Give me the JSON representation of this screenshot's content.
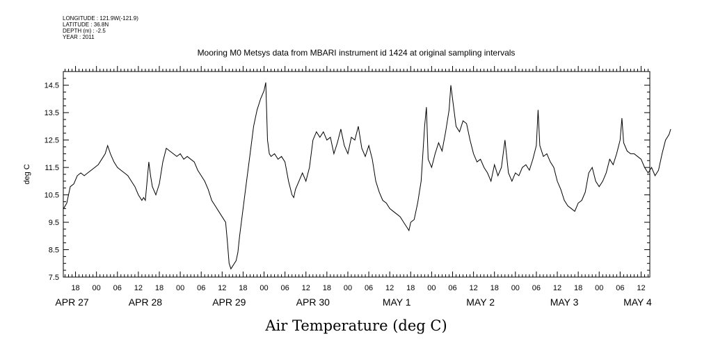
{
  "metadata": {
    "longitude": "LONGITUDE : 121.9W(-121.9)",
    "latitude": "LATITUDE : 36.8N",
    "depth": "DEPTH (m) : -2.5",
    "year": "YEAR : 2011"
  },
  "chart_data": {
    "type": "line",
    "title": "Mooring M0 Metsys data from MBARI instrument id 1424 at original sampling intervals",
    "xlabel": "Air Temperature (deg C)",
    "ylabel": "deg C",
    "ylim": [
      7.5,
      15.0
    ],
    "yticks": [
      7.5,
      8.5,
      9.5,
      10.5,
      11.5,
      12.5,
      13.5,
      14.5
    ],
    "ytick_labels": [
      "7.5",
      "8.5",
      "9.5",
      "10.5",
      "11.5",
      "12.5",
      "13.5",
      "14.5"
    ],
    "x_unit": "hours since APR 27 00",
    "xlim": [
      14.5,
      182.5
    ],
    "xtick_labels": [
      {
        "x": 18,
        "label": "18"
      },
      {
        "x": 24,
        "label": "00"
      },
      {
        "x": 30,
        "label": "06"
      },
      {
        "x": 36,
        "label": "12"
      },
      {
        "x": 42,
        "label": "18"
      },
      {
        "x": 48,
        "label": "00"
      },
      {
        "x": 54,
        "label": "06"
      },
      {
        "x": 60,
        "label": "12"
      },
      {
        "x": 66,
        "label": "18"
      },
      {
        "x": 72,
        "label": "00"
      },
      {
        "x": 78,
        "label": "06"
      },
      {
        "x": 84,
        "label": "12"
      },
      {
        "x": 90,
        "label": "18"
      },
      {
        "x": 96,
        "label": "00"
      },
      {
        "x": 102,
        "label": "06"
      },
      {
        "x": 108,
        "label": "12"
      },
      {
        "x": 114,
        "label": "18"
      },
      {
        "x": 120,
        "label": "00"
      },
      {
        "x": 126,
        "label": "06"
      },
      {
        "x": 132,
        "label": "12"
      },
      {
        "x": 138,
        "label": "18"
      },
      {
        "x": 144,
        "label": "00"
      },
      {
        "x": 150,
        "label": "06"
      },
      {
        "x": 156,
        "label": "12"
      },
      {
        "x": 162,
        "label": "18"
      },
      {
        "x": 168,
        "label": "00"
      },
      {
        "x": 174,
        "label": "06"
      },
      {
        "x": 180,
        "label": "12"
      }
    ],
    "day_labels": [
      {
        "x": 17,
        "label": "APR 27"
      },
      {
        "x": 38,
        "label": "APR 28"
      },
      {
        "x": 62,
        "label": "APR 29"
      },
      {
        "x": 86,
        "label": "APR 30"
      },
      {
        "x": 110,
        "label": "MAY  1"
      },
      {
        "x": 134,
        "label": "MAY  2"
      },
      {
        "x": 158,
        "label": "MAY  3"
      },
      {
        "x": 179,
        "label": "MAY  4"
      }
    ],
    "grid": false,
    "series": [
      {
        "points": [
          [
            14.6,
            10.0
          ],
          [
            15.5,
            10.2
          ],
          [
            16.5,
            10.8
          ],
          [
            17.5,
            10.9
          ],
          [
            18.5,
            11.2
          ],
          [
            19.5,
            11.3
          ],
          [
            20.5,
            11.2
          ],
          [
            21.5,
            11.3
          ],
          [
            22.5,
            11.4
          ],
          [
            23.5,
            11.5
          ],
          [
            24.5,
            11.6
          ],
          [
            25.5,
            11.8
          ],
          [
            26.5,
            12.0
          ],
          [
            27.2,
            12.3
          ],
          [
            28,
            12.0
          ],
          [
            29,
            11.7
          ],
          [
            30,
            11.5
          ],
          [
            31,
            11.4
          ],
          [
            32,
            11.3
          ],
          [
            33,
            11.2
          ],
          [
            34,
            11.0
          ],
          [
            35,
            10.8
          ],
          [
            36,
            10.5
          ],
          [
            37,
            10.3
          ],
          [
            37.5,
            10.4
          ],
          [
            38,
            10.3
          ],
          [
            38.5,
            11.0
          ],
          [
            39,
            11.7
          ],
          [
            39.5,
            11.2
          ],
          [
            40,
            10.8
          ],
          [
            41,
            10.5
          ],
          [
            42,
            10.9
          ],
          [
            43,
            11.7
          ],
          [
            44,
            12.2
          ],
          [
            45,
            12.1
          ],
          [
            46,
            12.0
          ],
          [
            47,
            11.9
          ],
          [
            48,
            12.0
          ],
          [
            49,
            11.8
          ],
          [
            50,
            11.9
          ],
          [
            51,
            11.8
          ],
          [
            52,
            11.7
          ],
          [
            53,
            11.4
          ],
          [
            54,
            11.2
          ],
          [
            55,
            11.0
          ],
          [
            56,
            10.7
          ],
          [
            57,
            10.3
          ],
          [
            58,
            10.1
          ],
          [
            59,
            9.9
          ],
          [
            60,
            9.7
          ],
          [
            61,
            9.5
          ],
          [
            61.5,
            8.8
          ],
          [
            62,
            8.0
          ],
          [
            62.5,
            7.8
          ],
          [
            63,
            7.9
          ],
          [
            64,
            8.1
          ],
          [
            64.5,
            8.4
          ],
          [
            65,
            9.0
          ],
          [
            66,
            10.0
          ],
          [
            67,
            11.0
          ],
          [
            68,
            12.0
          ],
          [
            69,
            13.0
          ],
          [
            70,
            13.6
          ],
          [
            71,
            14.0
          ],
          [
            72,
            14.3
          ],
          [
            72.5,
            14.6
          ],
          [
            73,
            12.5
          ],
          [
            73.5,
            12.0
          ],
          [
            74,
            11.9
          ],
          [
            75,
            12.0
          ],
          [
            76,
            11.8
          ],
          [
            77,
            11.9
          ],
          [
            78,
            11.7
          ],
          [
            79,
            11.0
          ],
          [
            80,
            10.5
          ],
          [
            80.5,
            10.4
          ],
          [
            81,
            10.7
          ],
          [
            82,
            11.0
          ],
          [
            83,
            11.3
          ],
          [
            84,
            11.0
          ],
          [
            85,
            11.5
          ],
          [
            86,
            12.5
          ],
          [
            87,
            12.8
          ],
          [
            88,
            12.6
          ],
          [
            89,
            12.8
          ],
          [
            90,
            12.5
          ],
          [
            91,
            12.6
          ],
          [
            92,
            12.0
          ],
          [
            93,
            12.4
          ],
          [
            94,
            12.9
          ],
          [
            95,
            12.3
          ],
          [
            96,
            12.0
          ],
          [
            97,
            12.6
          ],
          [
            98,
            12.5
          ],
          [
            99,
            13.0
          ],
          [
            100,
            12.2
          ],
          [
            101,
            11.9
          ],
          [
            102,
            12.3
          ],
          [
            103,
            11.8
          ],
          [
            104,
            11.0
          ],
          [
            105,
            10.6
          ],
          [
            106,
            10.3
          ],
          [
            107,
            10.2
          ],
          [
            108,
            10.0
          ],
          [
            109,
            9.9
          ],
          [
            110,
            9.8
          ],
          [
            111,
            9.7
          ],
          [
            112,
            9.5
          ],
          [
            113,
            9.3
          ],
          [
            113.5,
            9.2
          ],
          [
            114,
            9.5
          ],
          [
            115,
            9.6
          ],
          [
            116,
            10.2
          ],
          [
            117,
            11.0
          ],
          [
            117.5,
            12.0
          ],
          [
            118,
            13.0
          ],
          [
            118.5,
            13.7
          ],
          [
            119,
            11.8
          ],
          [
            120,
            11.5
          ],
          [
            121,
            12.0
          ],
          [
            122,
            12.4
          ],
          [
            123,
            12.1
          ],
          [
            124,
            12.8
          ],
          [
            125,
            13.6
          ],
          [
            125.5,
            14.5
          ],
          [
            126,
            14.0
          ],
          [
            126.5,
            13.5
          ],
          [
            127,
            13.0
          ],
          [
            128,
            12.8
          ],
          [
            129,
            13.2
          ],
          [
            130,
            13.1
          ],
          [
            131,
            12.5
          ],
          [
            132,
            12.0
          ],
          [
            133,
            11.7
          ],
          [
            134,
            11.8
          ],
          [
            135,
            11.5
          ],
          [
            136,
            11.3
          ],
          [
            137,
            11.0
          ],
          [
            138,
            11.6
          ],
          [
            139,
            11.2
          ],
          [
            140,
            11.5
          ],
          [
            141,
            12.5
          ],
          [
            142,
            11.3
          ],
          [
            143,
            11.0
          ],
          [
            144,
            11.3
          ],
          [
            145,
            11.2
          ],
          [
            146,
            11.5
          ],
          [
            147,
            11.6
          ],
          [
            148,
            11.4
          ],
          [
            149,
            11.8
          ],
          [
            150,
            12.3
          ],
          [
            150.5,
            13.6
          ],
          [
            151,
            12.3
          ],
          [
            152,
            11.9
          ],
          [
            153,
            12.0
          ],
          [
            154,
            11.7
          ],
          [
            155,
            11.5
          ],
          [
            156,
            11.0
          ],
          [
            157,
            10.7
          ],
          [
            158,
            10.3
          ],
          [
            159,
            10.1
          ],
          [
            160,
            10.0
          ],
          [
            161,
            9.9
          ],
          [
            162,
            10.2
          ],
          [
            163,
            10.3
          ],
          [
            164,
            10.6
          ],
          [
            165,
            11.3
          ],
          [
            166,
            11.5
          ],
          [
            167,
            11.0
          ],
          [
            168,
            10.8
          ],
          [
            169,
            11.0
          ],
          [
            170,
            11.3
          ],
          [
            171,
            11.8
          ],
          [
            172,
            11.6
          ],
          [
            173,
            12.0
          ],
          [
            174,
            12.5
          ],
          [
            174.5,
            13.3
          ],
          [
            175,
            12.4
          ],
          [
            176,
            12.1
          ],
          [
            177,
            12.0
          ],
          [
            178,
            12.0
          ],
          [
            179,
            11.9
          ],
          [
            180,
            11.8
          ],
          [
            181,
            11.5
          ],
          [
            182,
            11.3
          ],
          [
            183,
            11.5
          ],
          [
            184,
            11.2
          ],
          [
            185,
            11.4
          ],
          [
            186,
            12.0
          ],
          [
            187,
            12.5
          ],
          [
            188,
            12.7
          ],
          [
            188.5,
            12.9
          ]
        ]
      }
    ]
  }
}
